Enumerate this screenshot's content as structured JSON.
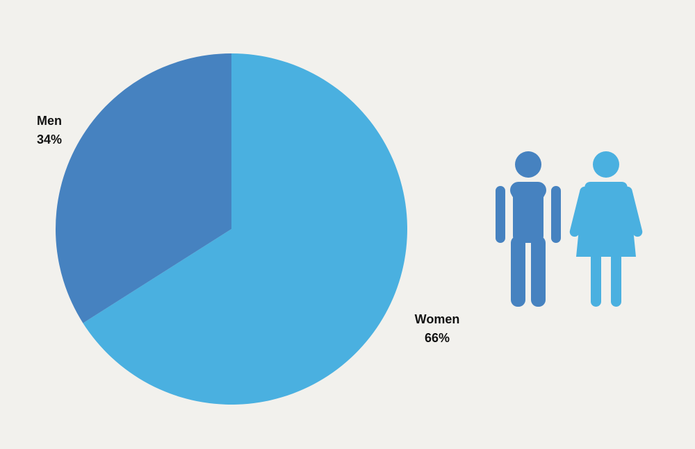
{
  "chart_data": {
    "type": "pie",
    "title": "",
    "slices": [
      {
        "label": "Women",
        "value": 66,
        "value_label": "66%",
        "color": "#4ab0e0"
      },
      {
        "label": "Men",
        "value": 34,
        "value_label": "34%",
        "color": "#4682c0"
      }
    ],
    "start_angle_deg": 0,
    "direction": "clockwise",
    "legend": "none"
  },
  "icons": [
    {
      "name": "man-icon",
      "color": "#4682c0"
    },
    {
      "name": "woman-icon",
      "color": "#4ab0e0"
    }
  ]
}
